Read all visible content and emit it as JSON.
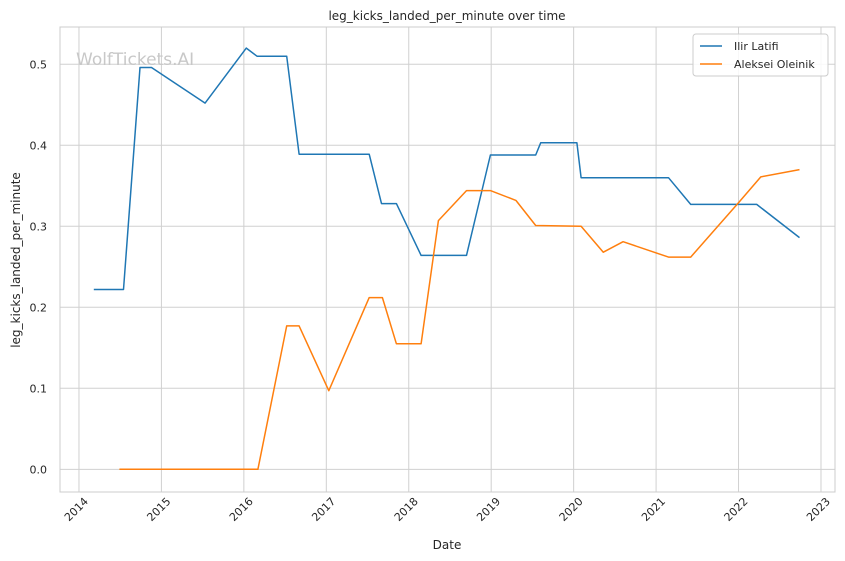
{
  "chart_data": {
    "type": "line",
    "title": "leg_kicks_landed_per_minute over time",
    "xlabel": "Date",
    "ylabel": "leg_kicks_landed_per_minute",
    "watermark": "WolfTickets.AI",
    "xlim": [
      2013.77,
      2023.17
    ],
    "ylim": [
      -0.028,
      0.546
    ],
    "x_ticks": [
      2014,
      2015,
      2016,
      2017,
      2018,
      2019,
      2020,
      2021,
      2022,
      2023
    ],
    "y_ticks": [
      0.0,
      0.1,
      0.2,
      0.3,
      0.4,
      0.5
    ],
    "y_tick_labels": [
      "0.0",
      "0.1",
      "0.2",
      "0.3",
      "0.4",
      "0.5"
    ],
    "grid": true,
    "legend_position": "top-right",
    "series": [
      {
        "name": "Ilir Latifi",
        "color": "#1f77b4",
        "points": [
          [
            2014.18,
            0.222
          ],
          [
            2014.54,
            0.222
          ],
          [
            2014.74,
            0.496
          ],
          [
            2014.88,
            0.496
          ],
          [
            2015.53,
            0.452
          ],
          [
            2016.03,
            0.52
          ],
          [
            2016.16,
            0.51
          ],
          [
            2016.52,
            0.51
          ],
          [
            2016.67,
            0.389
          ],
          [
            2017.52,
            0.389
          ],
          [
            2017.67,
            0.328
          ],
          [
            2017.85,
            0.328
          ],
          [
            2018.15,
            0.264
          ],
          [
            2018.7,
            0.264
          ],
          [
            2018.99,
            0.388
          ],
          [
            2019.54,
            0.388
          ],
          [
            2019.6,
            0.403
          ],
          [
            2020.04,
            0.403
          ],
          [
            2020.09,
            0.36
          ],
          [
            2021.15,
            0.36
          ],
          [
            2021.42,
            0.327
          ],
          [
            2022.22,
            0.327
          ],
          [
            2022.74,
            0.286
          ]
        ]
      },
      {
        "name": "Aleksei Oleinik",
        "color": "#ff7f0e",
        "points": [
          [
            2014.49,
            0.0
          ],
          [
            2016.17,
            0.0
          ],
          [
            2016.52,
            0.177
          ],
          [
            2016.67,
            0.177
          ],
          [
            2017.03,
            0.097
          ],
          [
            2017.52,
            0.212
          ],
          [
            2017.68,
            0.212
          ],
          [
            2017.85,
            0.155
          ],
          [
            2018.15,
            0.155
          ],
          [
            2018.36,
            0.307
          ],
          [
            2018.7,
            0.344
          ],
          [
            2018.99,
            0.344
          ],
          [
            2019.3,
            0.332
          ],
          [
            2019.54,
            0.301
          ],
          [
            2020.09,
            0.3
          ],
          [
            2020.36,
            0.268
          ],
          [
            2020.6,
            0.281
          ],
          [
            2021.15,
            0.262
          ],
          [
            2021.42,
            0.262
          ],
          [
            2022.0,
            0.329
          ],
          [
            2022.27,
            0.361
          ],
          [
            2022.74,
            0.37
          ]
        ]
      }
    ]
  }
}
